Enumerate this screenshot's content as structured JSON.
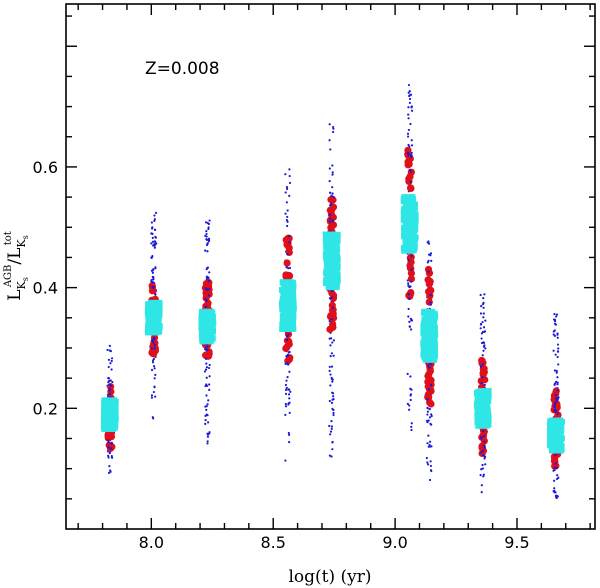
{
  "chart_data": {
    "type": "scatter",
    "annotation": "Z=0.008",
    "xlabel": "log(t) (yr)",
    "ylabel": {
      "numerator_base": "L",
      "numerator_sub": "K",
      "numerator_subsub": "s",
      "numerator_sup": "AGB",
      "slash": "/",
      "denominator_base": "L",
      "denominator_sub": "K",
      "denominator_subsub": "s",
      "denominator_sup": "tot"
    },
    "xlim": [
      7.65,
      9.82
    ],
    "ylim": [
      0.0,
      0.87
    ],
    "xticks_major": [
      "8.0",
      "8.5",
      "9.0",
      "9.5"
    ],
    "yticks_major": [
      "0.2",
      "0.4",
      "0.6"
    ],
    "colors": {
      "blue_points": "#1a1adb",
      "red_points": "#e0101a",
      "cyan_points": "#2ee6e6",
      "axes": "#000000"
    },
    "series": [
      {
        "name": "blue points",
        "marker": "small dot"
      },
      {
        "name": "red points",
        "marker": "filled circle"
      },
      {
        "name": "cyan points",
        "marker": "filled square"
      }
    ],
    "groups": [
      {
        "logt": 7.83,
        "blue": [
          0.09,
          0.305
        ],
        "red": [
          0.13,
          0.24
        ],
        "cyan": [
          0.165,
          0.215
        ]
      },
      {
        "logt": 8.01,
        "blue": [
          0.18,
          0.53
        ],
        "red": [
          0.29,
          0.42
        ],
        "cyan": [
          0.325,
          0.375
        ]
      },
      {
        "logt": 8.23,
        "blue": [
          0.14,
          0.53
        ],
        "red": [
          0.28,
          0.42
        ],
        "cyan": [
          0.31,
          0.36
        ]
      },
      {
        "logt": 8.56,
        "blue": [
          0.11,
          0.6
        ],
        "red": [
          0.27,
          0.49
        ],
        "cyan": [
          0.33,
          0.41
        ]
      },
      {
        "logt": 8.74,
        "blue": [
          0.12,
          0.68
        ],
        "red": [
          0.33,
          0.56
        ],
        "cyan": [
          0.4,
          0.49
        ]
      },
      {
        "logt": 9.06,
        "blue": [
          0.14,
          0.74
        ],
        "red": [
          0.38,
          0.63
        ],
        "cyan": [
          0.46,
          0.55
        ]
      },
      {
        "logt": 9.14,
        "blue": [
          0.08,
          0.49
        ],
        "red": [
          0.19,
          0.44
        ],
        "cyan": [
          0.28,
          0.36
        ]
      },
      {
        "logt": 9.36,
        "blue": [
          0.06,
          0.39
        ],
        "red": [
          0.12,
          0.28
        ],
        "cyan": [
          0.17,
          0.23
        ]
      },
      {
        "logt": 9.66,
        "blue": [
          0.05,
          0.36
        ],
        "red": [
          0.1,
          0.23
        ],
        "cyan": [
          0.13,
          0.18
        ]
      }
    ]
  }
}
